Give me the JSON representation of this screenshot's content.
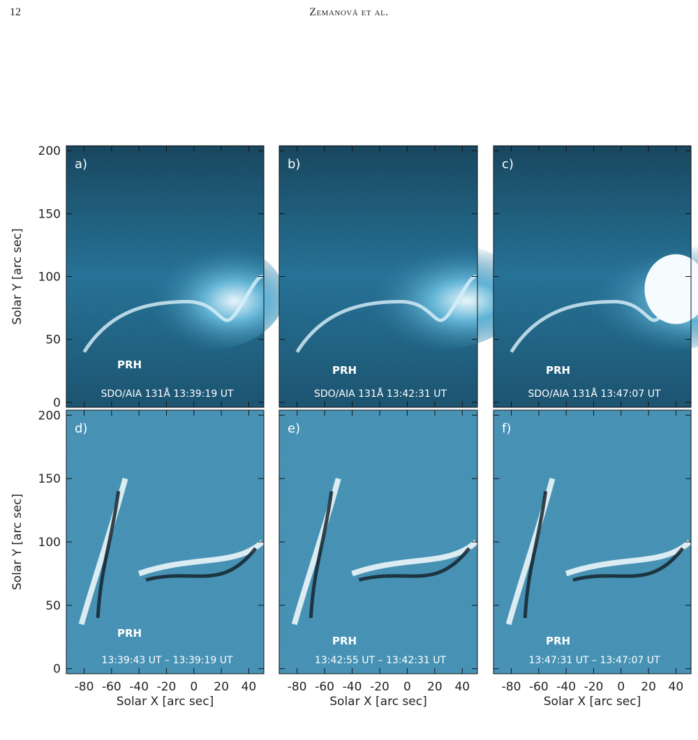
{
  "header": {
    "page_number": "12",
    "running_head": "Zemanová et al."
  },
  "figure": {
    "y_axis_label": "Solar Y [arc sec]",
    "x_axis_label": "Solar X [arc sec]",
    "xlim": [
      -93,
      51
    ],
    "ylim": [
      -4,
      204
    ],
    "xticks": [
      -80,
      -60,
      -40,
      -20,
      0,
      20,
      40
    ],
    "yticks": [
      0,
      50,
      100,
      150,
      200
    ],
    "panels": [
      {
        "label": "a)",
        "annotation": "PRH",
        "caption": "SDO/AIA 131Å 13:39:19 UT"
      },
      {
        "label": "b)",
        "annotation": "PRH",
        "caption": "SDO/AIA 131Å 13:42:31 UT"
      },
      {
        "label": "c)",
        "annotation": "PRH",
        "caption": "SDO/AIA 131Å 13:47:07 UT"
      },
      {
        "label": "d)",
        "annotation": "PRH",
        "caption": "13:39:43 UT – 13:39:19 UT"
      },
      {
        "label": "e)",
        "annotation": "PRH",
        "caption": "13:42:55 UT – 13:42:31 UT"
      },
      {
        "label": "f)",
        "annotation": "PRH",
        "caption": "13:47:31 UT – 13:47:07 UT"
      }
    ]
  }
}
